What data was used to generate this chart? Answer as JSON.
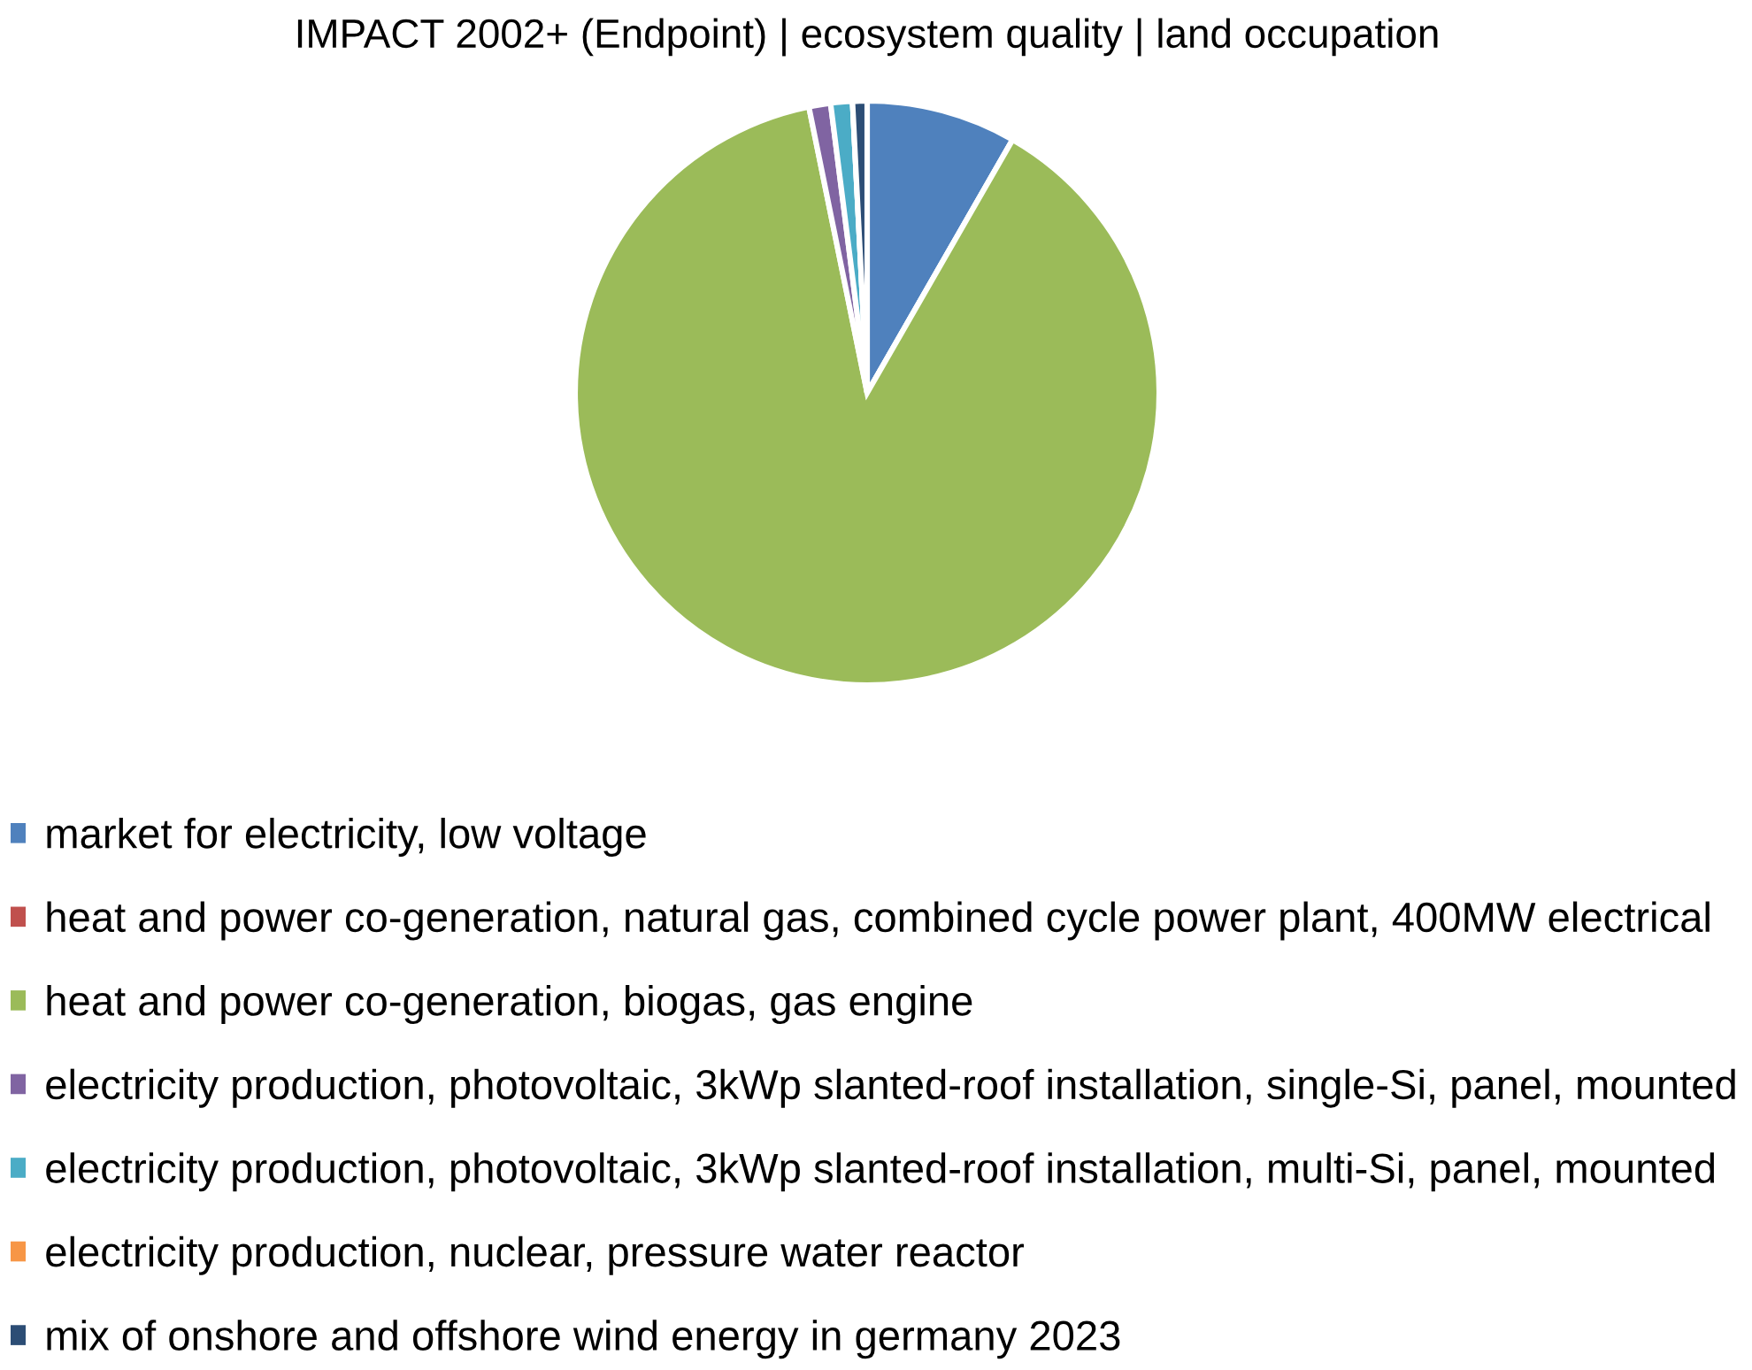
{
  "chart_data": {
    "type": "pie",
    "title": "IMPACT 2002+ (Endpoint) | ecosystem quality | land occupation",
    "categories": [
      "market for electricity, low voltage",
      "heat and power co-generation, natural gas, combined cycle power plant, 400MW electrical",
      "heat and power co-generation, biogas, gas engine",
      "electricity production, photovoltaic, 3kWp slanted-roof installation, single-Si, panel, mounted",
      "electricity production, photovoltaic, 3kWp slanted-roof installation, multi-Si, panel, mounted",
      "electricity production, nuclear, pressure water reactor",
      "mix of onshore and offshore wind energy in germany 2023"
    ],
    "values": [
      8.3,
      0,
      88.5,
      1.2,
      1.2,
      0,
      0.8
    ],
    "colors": [
      "#4f81bd",
      "#c0504d",
      "#9bbb59",
      "#8064a2",
      "#4bacc6",
      "#f79646",
      "#2c4d75"
    ],
    "legend": "bottom"
  }
}
